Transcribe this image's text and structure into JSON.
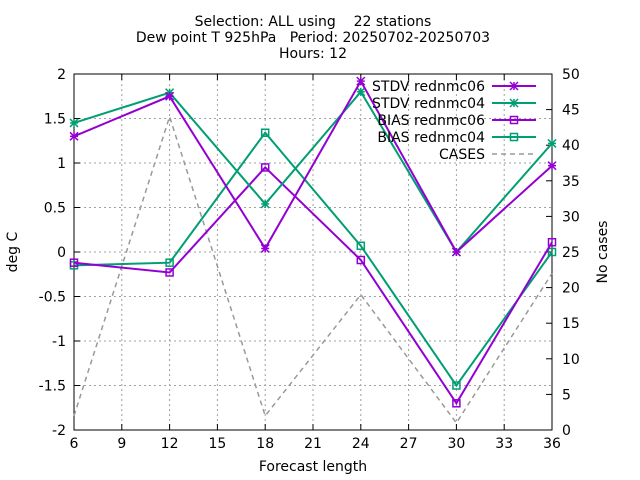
{
  "chart_data": {
    "type": "line",
    "title_lines": [
      "Selection: ALL using    22 stations",
      "Dew point T 925hPa   Period: 20250702-20250703",
      "Hours: 12"
    ],
    "xlabel": "Forecast length",
    "ylabel": "deg C",
    "y2label": "No cases",
    "x": [
      6,
      12,
      18,
      24,
      30,
      36
    ],
    "xlim": [
      6,
      36
    ],
    "xticks": [
      "6",
      "9",
      "12",
      "15",
      "18",
      "21",
      "24",
      "27",
      "30",
      "33",
      "36"
    ],
    "ylim": [
      -2,
      2
    ],
    "yticks": [
      "-2",
      "-1.5",
      "-1",
      "-0.5",
      "0",
      "0.5",
      "1",
      "1.5",
      "2"
    ],
    "y2lim": [
      0,
      50
    ],
    "y2ticks": [
      "0",
      "5",
      "10",
      "15",
      "20",
      "25",
      "30",
      "35",
      "40",
      "45",
      "50"
    ],
    "grid": true,
    "legend_position": "top-right",
    "series": [
      {
        "name": "STDV rednmc06",
        "axis": "y",
        "color": "#9400d3",
        "marker": "x",
        "dash": false,
        "values": [
          1.3,
          1.75,
          0.04,
          1.92,
          0.0,
          0.97
        ]
      },
      {
        "name": "STDV rednmc04",
        "axis": "y",
        "color": "#009e73",
        "marker": "x",
        "dash": false,
        "values": [
          1.45,
          1.79,
          0.54,
          1.8,
          0.0,
          1.22
        ]
      },
      {
        "name": "BIAS rednmc06",
        "axis": "y",
        "color": "#9400d3",
        "marker": "square",
        "dash": false,
        "values": [
          -0.12,
          -0.23,
          0.95,
          -0.09,
          -1.7,
          0.11
        ]
      },
      {
        "name": "BIAS rednmc04",
        "axis": "y",
        "color": "#009e73",
        "marker": "square",
        "dash": false,
        "values": [
          -0.15,
          -0.12,
          1.34,
          0.07,
          -1.5,
          0.0
        ]
      },
      {
        "name": "CASES",
        "axis": "y2",
        "color": "#999999",
        "marker": "none",
        "dash": true,
        "values": [
          2,
          44,
          2,
          19,
          1,
          22
        ]
      }
    ]
  }
}
